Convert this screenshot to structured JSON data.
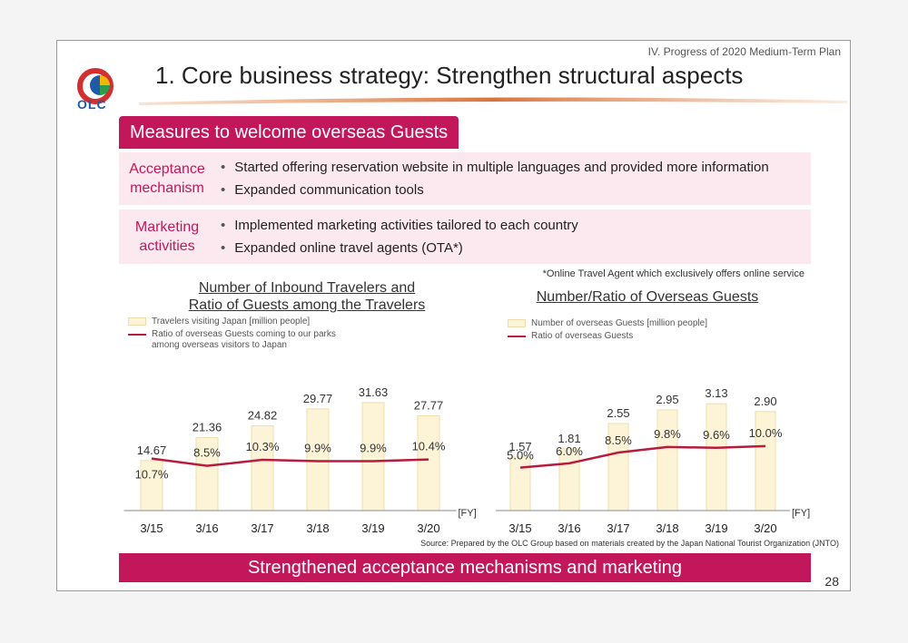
{
  "header": {
    "section_note": "IV. Progress of 2020 Medium-Term Plan",
    "title": "1. Core business strategy: Strengthen structural aspects",
    "logo_text": "OLC"
  },
  "colors": {
    "accent": "#c2185b",
    "line": "#b71c3c",
    "bar_fill": "#fdf4d8",
    "row_bg": "#fbe9ef"
  },
  "section_heading": "Measures to welcome overseas Guests",
  "rows": [
    {
      "label_lines": [
        "Acceptance",
        "mechanism"
      ],
      "items": [
        "Started offering reservation website in multiple languages and provided more information",
        "Expanded communication tools"
      ]
    },
    {
      "label_lines": [
        "Marketing",
        "activities"
      ],
      "items": [
        "Implemented marketing activities tailored to each country",
        "Expanded online travel agents (OTA*)"
      ]
    }
  ],
  "bullet_char": "•",
  "footnote": "*Online Travel Agent which exclusively offers online service",
  "source": "Source: Prepared by the OLC Group based on materials created by the Japan National Tourist Organization (JNTO)",
  "bottom_banner": "Strengthened acceptance mechanisms and marketing",
  "page_number": "28",
  "chart_data": [
    {
      "type": "bar",
      "title_lines": [
        "Number of Inbound Travelers and",
        "Ratio of Guests among the Travelers"
      ],
      "categories": [
        "3/15",
        "3/16",
        "3/17",
        "3/18",
        "3/19",
        "3/20"
      ],
      "x_unit": "[FY]",
      "bar_series": {
        "name": "Travelers visiting Japan [million people]",
        "values": [
          14.67,
          21.36,
          24.82,
          29.77,
          31.63,
          27.77
        ],
        "labels": [
          "14.67",
          "21.36",
          "24.82",
          "29.77",
          "31.63",
          "27.77"
        ]
      },
      "line_series": {
        "name_lines": [
          "Ratio of overseas Guests coming to our parks",
          "among overseas visitors to Japan"
        ],
        "values": [
          10.7,
          8.5,
          10.3,
          9.9,
          9.9,
          10.4
        ],
        "labels": [
          "10.7%",
          "8.5%",
          "10.3%",
          "9.9%",
          "9.9%",
          "10.4%"
        ]
      },
      "bar_max": 34,
      "line_range": [
        -5,
        30
      ]
    },
    {
      "type": "bar",
      "title_lines": [
        "Number/Ratio of Overseas Guests"
      ],
      "categories": [
        "3/15",
        "3/16",
        "3/17",
        "3/18",
        "3/19",
        "3/20"
      ],
      "x_unit": "[FY]",
      "bar_series": {
        "name": "Number of overseas Guests [million people]",
        "values": [
          1.57,
          1.81,
          2.55,
          2.95,
          3.13,
          2.9
        ],
        "labels": [
          "1.57",
          "1.81",
          "2.55",
          "2.95",
          "3.13",
          "2.90"
        ]
      },
      "line_series": {
        "name_lines": [
          "Ratio of overseas Guests"
        ],
        "values": [
          5.0,
          6.0,
          8.5,
          9.8,
          9.6,
          10.0
        ],
        "labels": [
          "5.0%",
          "6.0%",
          "8.5%",
          "9.8%",
          "9.6%",
          "10.0%"
        ]
      },
      "bar_max": 3.4,
      "line_range": [
        -5,
        22
      ]
    }
  ]
}
